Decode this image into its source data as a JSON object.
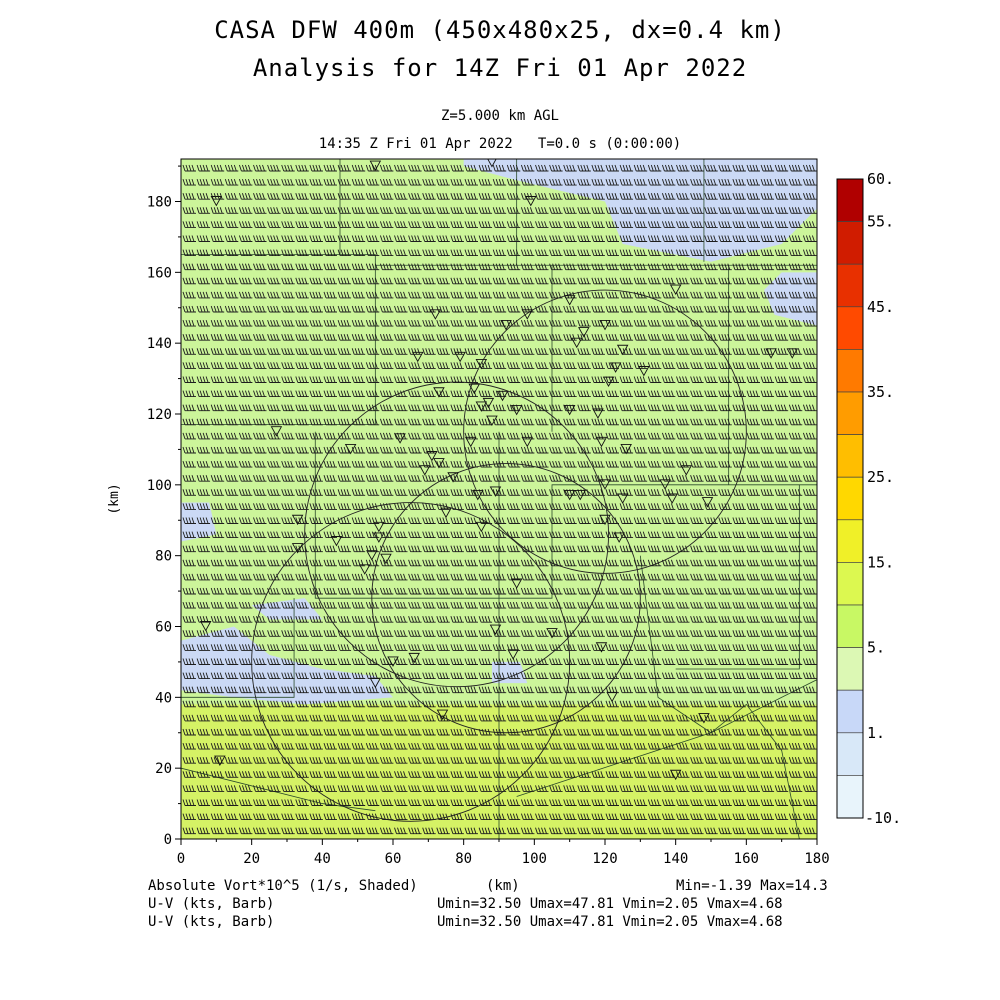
{
  "title_line1": "CASA DFW 400m (450x480x25, dx=0.4 km)",
  "title_line2": "Analysis for 14Z Fri 01 Apr 2022",
  "level_label": "Z=5.000 km AGL",
  "time_label": "14:35 Z Fri 01 Apr 2022   T=0.0 s (0:00:00)",
  "x_axis": {
    "label": "(km)",
    "min": 0,
    "max": 180,
    "ticks": [
      "0",
      "20",
      "40",
      "60",
      "80",
      "100",
      "120",
      "140",
      "160",
      "180"
    ]
  },
  "y_axis": {
    "label": "(km)",
    "min": 0,
    "max": 192,
    "ticks": [
      "0",
      "20",
      "40",
      "60",
      "80",
      "100",
      "120",
      "140",
      "160",
      "180"
    ]
  },
  "colorbar": {
    "labels": [
      "60.",
      "55.",
      "45.",
      "35.",
      "25.",
      "15.",
      "5.",
      "1.",
      "-10."
    ],
    "colors": [
      "#b00000",
      "#d01c00",
      "#e83000",
      "#ff4a00",
      "#ff7a00",
      "#ff9c00",
      "#ffbe00",
      "#ffd800",
      "#f0f028",
      "#dcf850",
      "#c8f864",
      "#dcf8b4",
      "#c8d8f8",
      "#d8e8f8",
      "#e8f4fb"
    ]
  },
  "footer": {
    "field_label": "Absolute Vort*10^5 (1/s, Shaded)",
    "x_unit": "(km)",
    "minmax": "Min=-1.39 Max=14.3",
    "barb1_label": "U-V (kts, Barb)",
    "barb1_stats": "Umin=32.50 Umax=47.81 Vmin=2.05 Vmax=4.68",
    "barb2_label": "U-V (kts, Barb)",
    "barb2_stats": "Umin=32.50 Umax=47.81 Vmin=2.05 Vmax=4.68"
  },
  "field_colors": {
    "base": "#ccf59a",
    "low": "#cbd9f5",
    "high": "#d5f265"
  },
  "radar_rings_km": [
    {
      "cx": 120,
      "cy": 115,
      "r": 40
    },
    {
      "cx": 92,
      "cy": 68,
      "r": 38
    },
    {
      "cx": 65,
      "cy": 50,
      "r": 45
    },
    {
      "cx": 78,
      "cy": 86,
      "r": 43
    }
  ]
}
